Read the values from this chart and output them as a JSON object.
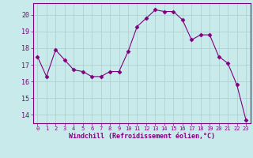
{
  "x": [
    0,
    1,
    2,
    3,
    4,
    5,
    6,
    7,
    8,
    9,
    10,
    11,
    12,
    13,
    14,
    15,
    16,
    17,
    18,
    19,
    20,
    21,
    22,
    23
  ],
  "y": [
    17.5,
    16.3,
    17.9,
    17.3,
    16.7,
    16.6,
    16.3,
    16.3,
    16.6,
    16.6,
    17.8,
    19.3,
    19.8,
    20.3,
    20.2,
    20.2,
    19.7,
    18.5,
    18.8,
    18.8,
    17.5,
    17.1,
    15.8,
    13.7
  ],
  "line_color": "#800080",
  "marker": "D",
  "marker_size": 2.5,
  "bg_color": "#c8eaea",
  "grid_color": "#aacccc",
  "xlabel": "Windchill (Refroidissement éolien,°C)",
  "xlabel_color": "#800080",
  "tick_color": "#800080",
  "axis_color": "#800080",
  "ylim": [
    13.5,
    20.7
  ],
  "yticks": [
    14,
    15,
    16,
    17,
    18,
    19,
    20
  ],
  "xlim": [
    -0.5,
    23.5
  ],
  "xticks": [
    0,
    1,
    2,
    3,
    4,
    5,
    6,
    7,
    8,
    9,
    10,
    11,
    12,
    13,
    14,
    15,
    16,
    17,
    18,
    19,
    20,
    21,
    22,
    23
  ]
}
